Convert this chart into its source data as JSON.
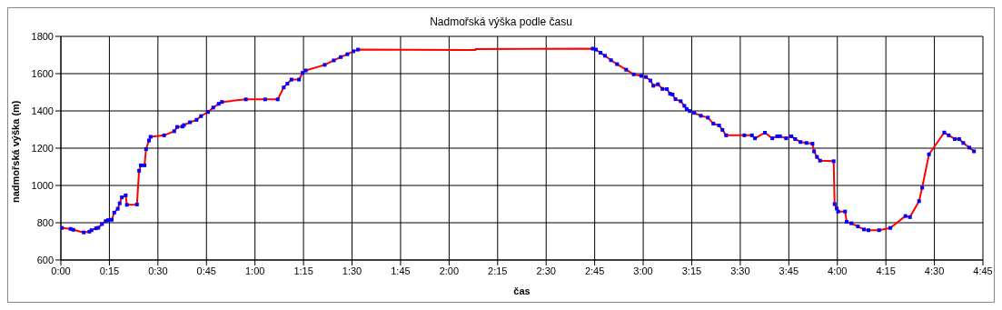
{
  "chart_data": {
    "type": "line",
    "title": "Nadmořská výška podle času",
    "xlabel": "čas",
    "ylabel": "nadmořská výška (m)",
    "xlim": [
      0,
      4.75
    ],
    "xticks": [
      {
        "value": 0,
        "label": "0:00"
      },
      {
        "value": 0.25,
        "label": "0:15"
      },
      {
        "value": 0.5,
        "label": "0:30"
      },
      {
        "value": 0.75,
        "label": "0:45"
      },
      {
        "value": 1,
        "label": "1:00"
      },
      {
        "value": 1.25,
        "label": "1:15"
      },
      {
        "value": 1.5,
        "label": "1:30"
      },
      {
        "value": 1.75,
        "label": "1:45"
      },
      {
        "value": 2,
        "label": "2:00"
      },
      {
        "value": 2.25,
        "label": "2:15"
      },
      {
        "value": 2.5,
        "label": "2:30"
      },
      {
        "value": 2.75,
        "label": "2:45"
      },
      {
        "value": 3,
        "label": "3:00"
      },
      {
        "value": 3.25,
        "label": "3:15"
      },
      {
        "value": 3.5,
        "label": "3:30"
      },
      {
        "value": 3.75,
        "label": "3:45"
      },
      {
        "value": 4,
        "label": "4:00"
      },
      {
        "value": 4.25,
        "label": "4:15"
      },
      {
        "value": 4.5,
        "label": "4:30"
      },
      {
        "value": 4.75,
        "label": "4:45"
      }
    ],
    "ylim": [
      600,
      1800
    ],
    "yticks": [
      600,
      800,
      1000,
      1200,
      1400,
      1600,
      1800
    ],
    "grid": true,
    "series": [
      {
        "color": "#ff0000",
        "marker": "none",
        "line_style": "solid",
        "x": [
          0.005,
          0.05,
          0.064,
          0.118,
          0.147,
          0.158,
          0.181,
          0.193,
          0.212,
          0.231,
          0.243,
          0.262,
          0.275,
          0.293,
          0.303,
          0.314,
          0.334,
          0.34,
          0.392,
          0.403,
          0.412,
          0.431,
          0.439,
          0.454,
          0.462,
          0.532,
          0.584,
          0.599,
          0.626,
          0.634,
          0.665,
          0.699,
          0.722,
          0.758,
          0.785,
          0.813,
          0.83,
          0.953,
          1.052,
          1.117,
          1.148,
          1.167,
          1.188,
          1.227,
          1.245,
          1.262,
          1.359,
          1.406,
          1.442,
          1.476,
          1.507,
          1.531,
          2.136,
          2.136,
          2.74,
          2.756,
          2.78,
          2.803,
          2.834,
          2.865,
          2.912,
          2.951,
          2.99,
          3.014,
          3.037,
          3.052,
          3.076,
          3.099,
          3.122,
          3.138,
          3.151,
          3.166,
          3.193,
          3.212,
          3.224,
          3.24,
          3.263,
          3.297,
          3.333,
          3.361,
          3.391,
          3.408,
          3.427,
          3.521,
          3.56,
          3.576,
          3.627,
          3.665,
          3.69,
          3.705,
          3.736,
          3.763,
          3.783,
          3.81,
          3.841,
          3.872,
          3.88,
          3.895,
          3.911,
          3.981,
          3.986,
          3.997,
          4.004,
          4.04,
          4.048,
          4.072,
          4.106,
          4.137,
          4.16,
          4.215,
          4.273,
          4.351,
          4.374,
          4.421,
          4.437,
          4.472,
          4.551,
          4.574,
          4.605,
          4.628,
          4.649,
          4.68,
          4.704
        ],
        "values": [
          772,
          767,
          762,
          748,
          752,
          760,
          770,
          773,
          793,
          809,
          814,
          816,
          854,
          875,
          904,
          936,
          947,
          896,
          898,
          1079,
          1108,
          1108,
          1195,
          1241,
          1261,
          1269,
          1291,
          1314,
          1316,
          1324,
          1339,
          1352,
          1372,
          1394,
          1418,
          1438,
          1448,
          1462,
          1462,
          1462,
          1526,
          1546,
          1568,
          1568,
          1604,
          1617,
          1647,
          1671,
          1689,
          1704,
          1720,
          1729,
          1727,
          1732,
          1734,
          1729,
          1712,
          1696,
          1672,
          1651,
          1621,
          1596,
          1588,
          1582,
          1563,
          1535,
          1543,
          1518,
          1517,
          1492,
          1488,
          1463,
          1452,
          1427,
          1410,
          1399,
          1389,
          1374,
          1364,
          1332,
          1322,
          1298,
          1269,
          1269,
          1269,
          1253,
          1283,
          1253,
          1264,
          1264,
          1253,
          1264,
          1249,
          1233,
          1228,
          1224,
          1183,
          1153,
          1133,
          1130,
          900,
          876,
          860,
          860,
          805,
          797,
          780,
          764,
          760,
          760,
          772,
          836,
          830,
          916,
          988,
          1167,
          1284,
          1269,
          1249,
          1249,
          1228,
          1203,
          1183
        ]
      },
      {
        "type": "scatter",
        "color": "#0000ff",
        "marker": "square",
        "x": [
          0.005,
          0.05,
          0.064,
          0.118,
          0.147,
          0.158,
          0.181,
          0.193,
          0.212,
          0.231,
          0.243,
          0.262,
          0.275,
          0.293,
          0.303,
          0.314,
          0.334,
          0.34,
          0.392,
          0.403,
          0.412,
          0.431,
          0.439,
          0.454,
          0.462,
          0.532,
          0.584,
          0.599,
          0.626,
          0.634,
          0.665,
          0.699,
          0.722,
          0.758,
          0.785,
          0.813,
          0.83,
          0.953,
          1.052,
          1.117,
          1.148,
          1.167,
          1.188,
          1.227,
          1.245,
          1.262,
          1.359,
          1.406,
          1.442,
          1.476,
          1.507,
          1.531,
          2.74,
          2.756,
          2.78,
          2.803,
          2.834,
          2.865,
          2.912,
          2.951,
          2.99,
          3.014,
          3.037,
          3.052,
          3.076,
          3.099,
          3.122,
          3.138,
          3.151,
          3.166,
          3.193,
          3.212,
          3.224,
          3.24,
          3.263,
          3.297,
          3.333,
          3.361,
          3.391,
          3.408,
          3.427,
          3.521,
          3.56,
          3.576,
          3.627,
          3.665,
          3.69,
          3.705,
          3.736,
          3.763,
          3.783,
          3.81,
          3.841,
          3.872,
          3.88,
          3.895,
          3.911,
          3.981,
          3.986,
          3.997,
          4.004,
          4.04,
          4.048,
          4.072,
          4.106,
          4.137,
          4.16,
          4.215,
          4.273,
          4.351,
          4.374,
          4.421,
          4.437,
          4.472,
          4.551,
          4.574,
          4.605,
          4.628,
          4.649,
          4.68,
          4.704
        ],
        "values": [
          772,
          767,
          762,
          748,
          752,
          760,
          770,
          773,
          793,
          809,
          814,
          816,
          854,
          875,
          904,
          936,
          947,
          896,
          898,
          1079,
          1108,
          1108,
          1195,
          1241,
          1261,
          1269,
          1291,
          1314,
          1316,
          1324,
          1339,
          1352,
          1372,
          1394,
          1418,
          1438,
          1448,
          1462,
          1462,
          1462,
          1526,
          1546,
          1568,
          1568,
          1604,
          1617,
          1647,
          1671,
          1689,
          1704,
          1720,
          1729,
          1734,
          1729,
          1712,
          1696,
          1672,
          1651,
          1621,
          1596,
          1588,
          1582,
          1563,
          1535,
          1543,
          1518,
          1517,
          1492,
          1488,
          1463,
          1452,
          1427,
          1410,
          1399,
          1389,
          1374,
          1364,
          1332,
          1322,
          1298,
          1269,
          1269,
          1269,
          1253,
          1283,
          1253,
          1264,
          1264,
          1253,
          1264,
          1249,
          1233,
          1228,
          1224,
          1183,
          1153,
          1133,
          1130,
          900,
          876,
          860,
          860,
          805,
          797,
          780,
          764,
          760,
          760,
          772,
          836,
          830,
          916,
          988,
          1167,
          1284,
          1269,
          1249,
          1249,
          1228,
          1203,
          1183
        ]
      }
    ]
  }
}
